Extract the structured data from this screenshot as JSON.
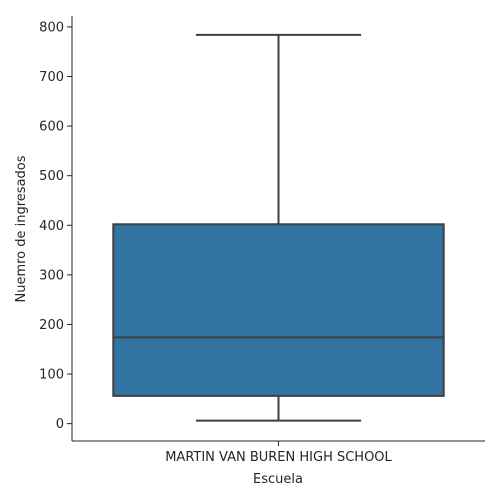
{
  "chart_data": {
    "type": "box",
    "categories": [
      "MARTIN VAN BUREN HIGH SCHOOL"
    ],
    "boxes": [
      {
        "category": "MARTIN VAN BUREN HIGH SCHOOL",
        "whisker_low": 6,
        "q1": 56,
        "median": 174,
        "q3": 402,
        "whisker_high": 784
      }
    ],
    "xlabel": "Escuela",
    "ylabel": "Nuemro de ingresados",
    "ylim": [
      -35,
      822
    ],
    "yticks": [
      0,
      100,
      200,
      300,
      400,
      500,
      600,
      700,
      800
    ],
    "grid": false,
    "colors": {
      "box_fill": "#3274a1",
      "lines": "#3f3f3f",
      "axis": "#262626"
    }
  }
}
